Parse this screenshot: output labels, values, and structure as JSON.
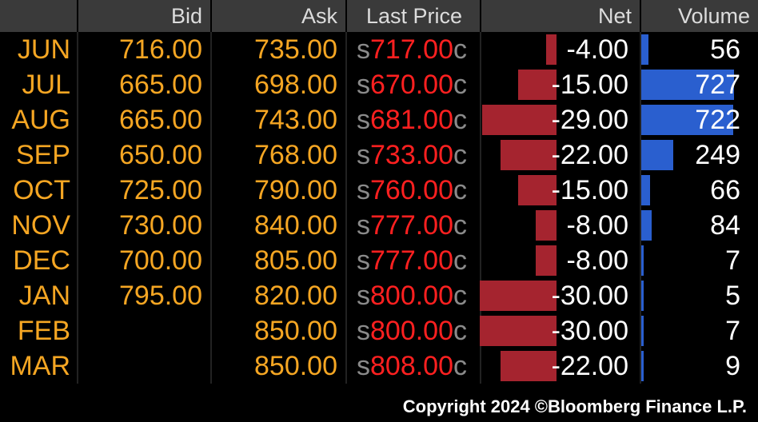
{
  "headers": {
    "month": "",
    "bid": "Bid",
    "ask": "Ask",
    "last_price": "Last Price",
    "net": "Net",
    "volume": "Volume"
  },
  "rows": [
    {
      "month": "JUN",
      "bid": "716.00",
      "ask": "735.00",
      "last_prefix": "s",
      "last_price": "717.00",
      "last_suffix": "c",
      "net": "-4.00",
      "volume": "56"
    },
    {
      "month": "JUL",
      "bid": "665.00",
      "ask": "698.00",
      "last_prefix": "s",
      "last_price": "670.00",
      "last_suffix": "c",
      "net": "-15.00",
      "volume": "727"
    },
    {
      "month": "AUG",
      "bid": "665.00",
      "ask": "743.00",
      "last_prefix": "s",
      "last_price": "681.00",
      "last_suffix": "c",
      "net": "-29.00",
      "volume": "722"
    },
    {
      "month": "SEP",
      "bid": "650.00",
      "ask": "768.00",
      "last_prefix": "s",
      "last_price": "733.00",
      "last_suffix": "c",
      "net": "-22.00",
      "volume": "249"
    },
    {
      "month": "OCT",
      "bid": "725.00",
      "ask": "790.00",
      "last_prefix": "s",
      "last_price": "760.00",
      "last_suffix": "c",
      "net": "-15.00",
      "volume": "66"
    },
    {
      "month": "NOV",
      "bid": "730.00",
      "ask": "840.00",
      "last_prefix": "s",
      "last_price": "777.00",
      "last_suffix": "c",
      "net": "-8.00",
      "volume": "84"
    },
    {
      "month": "DEC",
      "bid": "700.00",
      "ask": "805.00",
      "last_prefix": "s",
      "last_price": "777.00",
      "last_suffix": "c",
      "net": "-8.00",
      "volume": "7"
    },
    {
      "month": "JAN",
      "bid": "795.00",
      "ask": "820.00",
      "last_prefix": "s",
      "last_price": "800.00",
      "last_suffix": "c",
      "net": "-30.00",
      "volume": "5"
    },
    {
      "month": "FEB",
      "bid": "",
      "ask": "850.00",
      "last_prefix": "s",
      "last_price": "800.00",
      "last_suffix": "c",
      "net": "-30.00",
      "volume": "7"
    },
    {
      "month": "MAR",
      "bid": "",
      "ask": "850.00",
      "last_prefix": "s",
      "last_price": "808.00",
      "last_suffix": "c",
      "net": "-22.00",
      "volume": "9"
    }
  ],
  "footer": {
    "copyright": "Copyright 2024 ©Bloomberg Finance L.P."
  },
  "colors": {
    "background": "#000000",
    "header_bg": "#3a3a3a",
    "header_text": "#dcdcdc",
    "orange_text": "#f5a623",
    "last_price_red": "#ff2020",
    "net_bar_red": "#a5242f",
    "volume_bar_blue": "#2a5fcf"
  }
}
